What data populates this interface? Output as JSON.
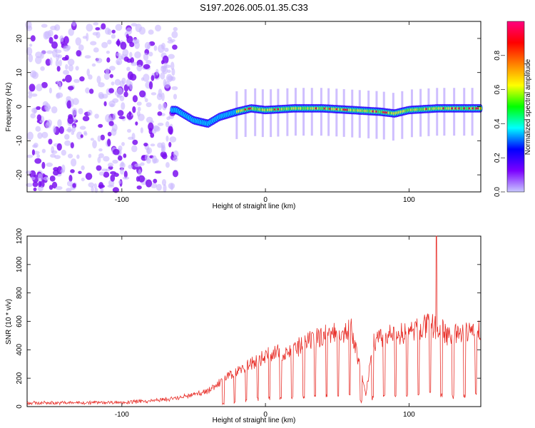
{
  "title": "S197.2026.005.01.35.C33",
  "chart_data": [
    {
      "type": "heatmap",
      "name": "spectrogram",
      "xlabel": "Height of straight line (km)",
      "ylabel": "Frequency (Hz)",
      "xlim": [
        -166,
        150
      ],
      "ylim": [
        -25,
        25
      ],
      "xticks": [
        -100,
        0,
        100
      ],
      "yticks": [
        -20,
        -10,
        0,
        10,
        20
      ],
      "colorbar": {
        "label": "Normalized spectral amplitude",
        "range": [
          0,
          1
        ],
        "ticks": [
          "0.0",
          "0.2",
          "0.4",
          "0.6",
          "0.8"
        ],
        "colors": [
          "#c8c8ff",
          "#7b00ff",
          "#0000ff",
          "#00ffff",
          "#00ff00",
          "#ffff00",
          "#ff8000",
          "#ff0000",
          "#ff0080"
        ]
      },
      "ridge": {
        "x": [
          -62,
          -50,
          -40,
          -32,
          -20,
          -10,
          0,
          20,
          40,
          60,
          80,
          90,
          100,
          120,
          150
        ],
        "freq": [
          -1,
          -4,
          -5,
          -3,
          -1.5,
          -0.5,
          -1,
          -0.5,
          -0.5,
          -1,
          -1.5,
          -2,
          -1,
          -0.5,
          -0.5
        ]
      }
    },
    {
      "type": "line",
      "name": "snr",
      "xlabel": "Height of straight line (km)",
      "ylabel": "SNR (10 * v/v)",
      "xlim": [
        -166,
        150
      ],
      "ylim": [
        0,
        1200
      ],
      "xticks": [
        -100,
        0,
        100
      ],
      "yticks": [
        0,
        200,
        400,
        600,
        800,
        1000,
        1200
      ],
      "color": "#e8302a",
      "envelope": {
        "x": [
          -166,
          -100,
          -80,
          -60,
          -40,
          -30,
          -20,
          -10,
          0,
          20,
          40,
          60,
          70,
          75,
          80,
          100,
          115,
          120,
          130,
          150
        ],
        "snr": [
          25,
          30,
          40,
          60,
          110,
          180,
          250,
          300,
          360,
          400,
          500,
          540,
          80,
          450,
          480,
          520,
          580,
          540,
          500,
          540
        ]
      },
      "spike": {
        "x": 119,
        "snr": 1200
      }
    }
  ]
}
